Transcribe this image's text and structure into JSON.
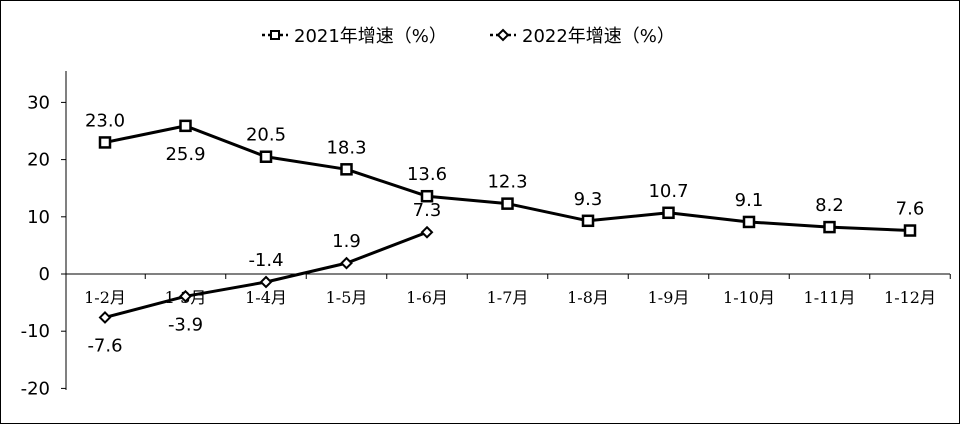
{
  "chart_data": {
    "type": "line",
    "categories": [
      "1-2月",
      "1-3月",
      "1-4月",
      "1-5月",
      "1-6月",
      "1-7月",
      "1-8月",
      "1-9月",
      "1-10月",
      "1-11月",
      "1-12月"
    ],
    "series": [
      {
        "name": "2021年增速（%）",
        "marker": "square",
        "values": [
          23.0,
          25.9,
          20.5,
          18.3,
          13.6,
          12.3,
          9.3,
          10.7,
          9.1,
          8.2,
          7.6
        ],
        "labels": [
          "23.0",
          "25.9",
          "20.5",
          "18.3",
          "13.6",
          "12.3",
          "9.3",
          "10.7",
          "9.1",
          "8.2",
          "7.6"
        ]
      },
      {
        "name": "2022年增速（%）",
        "marker": "diamond",
        "values": [
          -7.6,
          -3.9,
          -1.4,
          1.9,
          7.3,
          null,
          null,
          null,
          null,
          null,
          null
        ],
        "labels": [
          "-7.6",
          "-3.9",
          "-1.4",
          "1.9",
          "7.3",
          null,
          null,
          null,
          null,
          null,
          null
        ]
      }
    ],
    "yticks": [
      "30",
      "20",
      "10",
      "0",
      "-10",
      "-20"
    ],
    "ylim": [
      -20,
      35
    ],
    "grid": false,
    "legend_position": "top-center",
    "line_color": "#000000"
  }
}
